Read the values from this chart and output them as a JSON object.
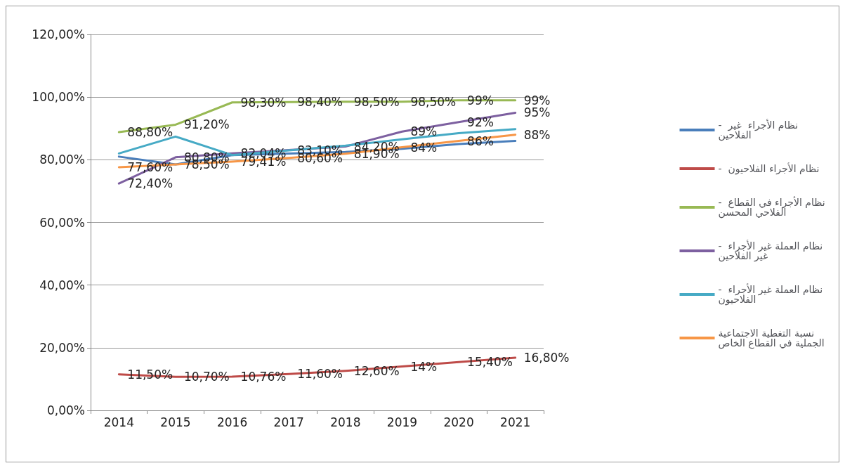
{
  "chart_data": {
    "type": "line",
    "categories": [
      "2014",
      "2015",
      "2016",
      "2017",
      "2018",
      "2019",
      "2020",
      "2021"
    ],
    "ylim": [
      0,
      120
    ],
    "yticks": [
      {
        "value": 0,
        "label": "0,00%"
      },
      {
        "value": 20,
        "label": "20,00%"
      },
      {
        "value": 40,
        "label": "40,00%"
      },
      {
        "value": 60,
        "label": "60,00%"
      },
      {
        "value": 80,
        "label": "80,00%"
      },
      {
        "value": 100,
        "label": "100,00%"
      },
      {
        "value": 120,
        "label": "120,00%"
      }
    ],
    "grid": "y",
    "legend": "right",
    "marker": "none",
    "line_style": "solid",
    "series": [
      {
        "name": "-  نظام الأجراء  غير الفلاحين",
        "color": "#4a7ebb",
        "values": [
          81,
          78.5,
          81.5,
          82,
          82.5,
          83.5,
          85,
          86
        ],
        "value_labels": [
          null,
          null,
          null,
          null,
          null,
          null,
          null,
          null
        ]
      },
      {
        "name": "-  نظام الأجراء الفلاحيون",
        "color": "#be4b48",
        "values": [
          11.5,
          10.7,
          10.76,
          11.6,
          12.6,
          14,
          15.4,
          16.8
        ],
        "value_labels": [
          "11,50%",
          "10,70%",
          "10,76%",
          "11,60%",
          "12,60%",
          "14%",
          "15,40%",
          "16,80%"
        ]
      },
      {
        "name": "-  نظام الأجراء في القطاع الفلاحي المحسن",
        "color": "#98b954",
        "values": [
          88.8,
          91.2,
          98.3,
          98.4,
          98.5,
          98.5,
          99,
          99
        ],
        "value_labels": [
          "88,80%",
          "91,20%",
          "98,30%",
          "98,40%",
          "98,50%",
          "98,50%",
          "99%",
          "99%"
        ]
      },
      {
        "name": "-  نظام العملة غير الأجراء غير الفلاحين",
        "color": "#7d60a0",
        "values": [
          72.4,
          80.8,
          82.04,
          83.1,
          84.2,
          89,
          92,
          95
        ],
        "value_labels": [
          "72,40%",
          "80,80%",
          "82,04%",
          "83,10%",
          "84,20%",
          "89%",
          "92%",
          "95%"
        ]
      },
      {
        "name": "-  نظام العملة غير الأجراء الفلاحيون",
        "color": "#46aac5",
        "values": [
          82,
          87.4,
          81.5,
          83,
          84.5,
          86.5,
          88.5,
          89.8
        ],
        "value_labels": [
          null,
          null,
          null,
          null,
          null,
          null,
          null,
          null
        ]
      },
      {
        "name": "نسبة التغطية الاجتماعية الجملية في القطاع الخاص",
        "color": "#f79646",
        "values": [
          77.6,
          78.5,
          79.41,
          80.6,
          81.9,
          84,
          86,
          88
        ],
        "value_labels": [
          "77,60%",
          "78,50%",
          "79,41%",
          "80,60%",
          "81,90%",
          "84%",
          "86%",
          "88%"
        ]
      }
    ]
  }
}
